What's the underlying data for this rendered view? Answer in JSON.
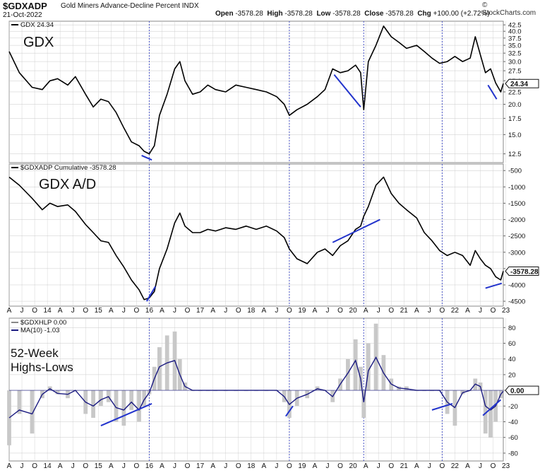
{
  "header": {
    "symbol": "$GDXADP",
    "description": "Gold Miners Advance-Decline Percent INDX",
    "date": "21-Oct-2022",
    "open_label": "Open",
    "open": "-3578.28",
    "high_label": "High",
    "high": "-3578.28",
    "low_label": "Low",
    "low": "-3578.28",
    "close_label": "Close",
    "close": "-3578.28",
    "chg_label": "Chg",
    "chg": "+100.00 (+2.72%)",
    "brand": "© StockCharts.com"
  },
  "colors": {
    "price_line": "#000000",
    "trend_line": "#2233cc",
    "ma_line": "#1a1a80",
    "hl_bar": "#c8c8c8",
    "grid": "#c9c9c9",
    "year_marker": "#4a55c8"
  },
  "x_axis": {
    "labels": [
      "A",
      "J",
      "O",
      "14",
      "A",
      "J",
      "O",
      "15",
      "A",
      "J",
      "O",
      "16",
      "A",
      "J",
      "O",
      "17",
      "A",
      "J",
      "O",
      "18",
      "A",
      "J",
      "O",
      "19",
      "A",
      "J",
      "O",
      "20",
      "A",
      "J",
      "O",
      "21",
      "A",
      "J",
      "O",
      "22",
      "A",
      "J",
      "O",
      "23"
    ],
    "start": 2013.25,
    "end": 2022.95,
    "marker_dates": [
      2016.0,
      2018.75,
      2020.21,
      2021.75
    ]
  },
  "chart_data": [
    {
      "type": "line",
      "series_label": "GDX 24.34",
      "overlay_text": "GDX",
      "last_value_label": "24.34",
      "y_scale": "log",
      "ylim": [
        11.5,
        44
      ],
      "y_ticks": [
        12.5,
        15.0,
        17.5,
        20.0,
        22.5,
        25.0,
        27.5,
        30.0,
        32.5,
        35.0,
        37.5,
        40.0,
        42.5
      ],
      "y_tick_labels": [
        "12.5",
        "15.0",
        "17.5",
        "20.0",
        "22.5",
        "25.0",
        "27.5",
        "30.0",
        "32.5",
        "35.0",
        "37.5",
        "40.0",
        "42.5"
      ],
      "x": [
        2013.25,
        2013.45,
        2013.7,
        2013.9,
        2014.05,
        2014.2,
        2014.4,
        2014.55,
        2014.75,
        2014.9,
        2015.05,
        2015.2,
        2015.35,
        2015.5,
        2015.65,
        2015.8,
        2015.9,
        2016.0,
        2016.1,
        2016.2,
        2016.35,
        2016.5,
        2016.6,
        2016.7,
        2016.85,
        2017.0,
        2017.15,
        2017.3,
        2017.5,
        2017.7,
        2017.9,
        2018.1,
        2018.3,
        2018.5,
        2018.65,
        2018.75,
        2018.9,
        2019.1,
        2019.3,
        2019.45,
        2019.6,
        2019.75,
        2019.9,
        2020.05,
        2020.15,
        2020.21,
        2020.3,
        2020.45,
        2020.6,
        2020.75,
        2020.9,
        2021.05,
        2021.25,
        2021.4,
        2021.55,
        2021.7,
        2021.85,
        2022.0,
        2022.15,
        2022.3,
        2022.4,
        2022.5,
        2022.6,
        2022.7,
        2022.8,
        2022.9,
        2022.95
      ],
      "values": [
        33,
        27,
        23.5,
        23,
        25,
        25.5,
        24,
        26,
        22,
        19.5,
        21,
        20.5,
        18.5,
        16,
        14,
        13.5,
        12.8,
        12.5,
        13.5,
        18,
        22,
        28,
        30,
        25,
        22,
        22.5,
        24,
        23,
        22.5,
        24,
        23.5,
        23,
        22.5,
        21.5,
        20,
        18,
        19,
        20,
        21.5,
        23,
        28,
        27,
        27.5,
        29,
        27,
        19,
        30,
        35,
        42,
        38,
        36,
        34,
        35,
        33,
        31,
        29.5,
        30,
        31.5,
        30,
        31,
        38,
        32,
        27,
        28,
        24.5,
        22.5,
        24.34
      ]
    },
    {
      "type": "line",
      "series_label": "$GDXADP Cumulative -3578.28",
      "overlay_text": "GDX A/D",
      "last_value_label": "-3578.28",
      "ylim": [
        -4650,
        -300
      ],
      "y_ticks": [
        -4500,
        -4000,
        -3500,
        -3000,
        -2500,
        -2000,
        -1500,
        -1000,
        -500
      ],
      "y_tick_labels": [
        "-4500",
        "-4000",
        "-3500",
        "-3000",
        "-2500",
        "-2000",
        "-1500",
        "-1000",
        "-500"
      ],
      "x": [
        2013.25,
        2013.45,
        2013.7,
        2013.9,
        2014.05,
        2014.2,
        2014.4,
        2014.55,
        2014.75,
        2014.9,
        2015.05,
        2015.2,
        2015.35,
        2015.5,
        2015.65,
        2015.8,
        2015.9,
        2016.0,
        2016.1,
        2016.2,
        2016.35,
        2016.5,
        2016.6,
        2016.7,
        2016.85,
        2017.0,
        2017.15,
        2017.3,
        2017.5,
        2017.7,
        2017.9,
        2018.1,
        2018.3,
        2018.5,
        2018.65,
        2018.75,
        2018.9,
        2019.1,
        2019.3,
        2019.45,
        2019.6,
        2019.75,
        2019.9,
        2020.05,
        2020.15,
        2020.21,
        2020.3,
        2020.45,
        2020.6,
        2020.75,
        2020.9,
        2021.05,
        2021.25,
        2021.4,
        2021.55,
        2021.7,
        2021.85,
        2022.0,
        2022.15,
        2022.3,
        2022.4,
        2022.5,
        2022.6,
        2022.7,
        2022.8,
        2022.9,
        2022.95
      ],
      "values": [
        -700,
        -950,
        -1350,
        -1700,
        -1500,
        -1600,
        -1550,
        -1750,
        -2150,
        -2400,
        -2650,
        -2700,
        -3100,
        -3450,
        -3850,
        -4150,
        -4450,
        -4400,
        -4200,
        -3500,
        -2900,
        -2100,
        -1800,
        -2200,
        -2400,
        -2400,
        -2300,
        -2350,
        -2250,
        -2300,
        -2200,
        -2300,
        -2200,
        -2350,
        -2550,
        -2900,
        -3200,
        -3350,
        -3000,
        -2900,
        -3100,
        -2800,
        -2650,
        -2300,
        -2200,
        -1900,
        -1600,
        -950,
        -700,
        -1200,
        -1500,
        -1700,
        -1950,
        -2400,
        -2650,
        -2950,
        -3100,
        -3000,
        -3100,
        -3400,
        -2950,
        -3200,
        -3400,
        -3500,
        -3750,
        -3850,
        -3578.28
      ]
    },
    {
      "type": "area",
      "series_label": "$GDXHLP 0.00",
      "ma_label": "MA(10) -1.03",
      "overlay_text_line1": "52-Week",
      "overlay_text_line2": "Highs-Lows",
      "last_value_label": "0.00",
      "ylim": [
        -90,
        92
      ],
      "y_ticks": [
        -80,
        -60,
        -40,
        -20,
        0,
        20,
        40,
        60,
        80
      ],
      "y_tick_labels": [
        "-80",
        "-60",
        "-40",
        "-20",
        "0",
        "20",
        "40",
        "60",
        "80"
      ],
      "x": [
        2013.25,
        2013.45,
        2013.7,
        2013.9,
        2014.05,
        2014.2,
        2014.4,
        2014.55,
        2014.75,
        2014.9,
        2015.05,
        2015.2,
        2015.35,
        2015.5,
        2015.65,
        2015.8,
        2015.9,
        2016.0,
        2016.1,
        2016.2,
        2016.35,
        2016.5,
        2016.6,
        2016.7,
        2016.85,
        2017.0,
        2017.15,
        2017.3,
        2017.5,
        2017.7,
        2017.9,
        2018.1,
        2018.3,
        2018.5,
        2018.65,
        2018.75,
        2018.9,
        2019.1,
        2019.3,
        2019.45,
        2019.6,
        2019.75,
        2019.9,
        2020.05,
        2020.15,
        2020.21,
        2020.3,
        2020.45,
        2020.6,
        2020.75,
        2020.9,
        2021.05,
        2021.25,
        2021.4,
        2021.55,
        2021.7,
        2021.85,
        2022.0,
        2022.15,
        2022.3,
        2022.4,
        2022.5,
        2022.6,
        2022.7,
        2022.8,
        2022.9,
        2022.95
      ],
      "values": [
        -70,
        -30,
        -55,
        -10,
        5,
        -5,
        -10,
        0,
        -30,
        -35,
        -20,
        -15,
        -40,
        -45,
        -25,
        -40,
        -20,
        -5,
        30,
        55,
        70,
        75,
        40,
        10,
        0,
        0,
        0,
        0,
        0,
        0,
        0,
        0,
        0,
        0,
        -15,
        -35,
        -20,
        -10,
        5,
        0,
        -15,
        15,
        40,
        65,
        30,
        -35,
        60,
        85,
        45,
        15,
        5,
        5,
        0,
        0,
        0,
        0,
        -30,
        -45,
        -5,
        0,
        15,
        10,
        -55,
        -60,
        -40,
        -10,
        0
      ],
      "ma_values": [
        -35,
        -25,
        -30,
        -5,
        2,
        -4,
        -5,
        0,
        -15,
        -20,
        -12,
        -8,
        -22,
        -25,
        -15,
        -25,
        -12,
        -3,
        15,
        30,
        35,
        38,
        20,
        5,
        0,
        0,
        0,
        0,
        0,
        0,
        0,
        0,
        0,
        0,
        -8,
        -18,
        -10,
        -5,
        2,
        0,
        -8,
        8,
        22,
        38,
        15,
        -15,
        25,
        42,
        22,
        8,
        3,
        2,
        0,
        0,
        0,
        0,
        -15,
        -22,
        -3,
        0,
        8,
        5,
        -20,
        -25,
        -20,
        -5,
        -1.03
      ]
    }
  ],
  "trendlines": [
    {
      "panel": 0,
      "from": [
        2015.85,
        12.3
      ],
      "to": [
        2016.05,
        11.8
      ]
    },
    {
      "panel": 0,
      "from": [
        2019.63,
        26.5
      ],
      "to": [
        2020.15,
        19.5
      ]
    },
    {
      "panel": 0,
      "from": [
        2022.65,
        24.0
      ],
      "to": [
        2022.82,
        21.0
      ]
    },
    {
      "panel": 1,
      "from": [
        2015.95,
        -4500
      ],
      "to": [
        2016.12,
        -4050
      ]
    },
    {
      "panel": 1,
      "from": [
        2019.6,
        -2700
      ],
      "to": [
        2020.53,
        -2000
      ]
    },
    {
      "panel": 1,
      "from": [
        2022.6,
        -4100
      ],
      "to": [
        2022.92,
        -3950
      ]
    },
    {
      "panel": 2,
      "from": [
        2015.05,
        -45
      ],
      "to": [
        2016.05,
        -17
      ]
    },
    {
      "panel": 2,
      "from": [
        2018.68,
        -33
      ],
      "to": [
        2018.82,
        -20
      ]
    },
    {
      "panel": 2,
      "from": [
        2021.55,
        -25
      ],
      "to": [
        2021.95,
        -17
      ]
    },
    {
      "panel": 2,
      "from": [
        2022.55,
        -32
      ],
      "to": [
        2022.9,
        -12
      ]
    }
  ]
}
